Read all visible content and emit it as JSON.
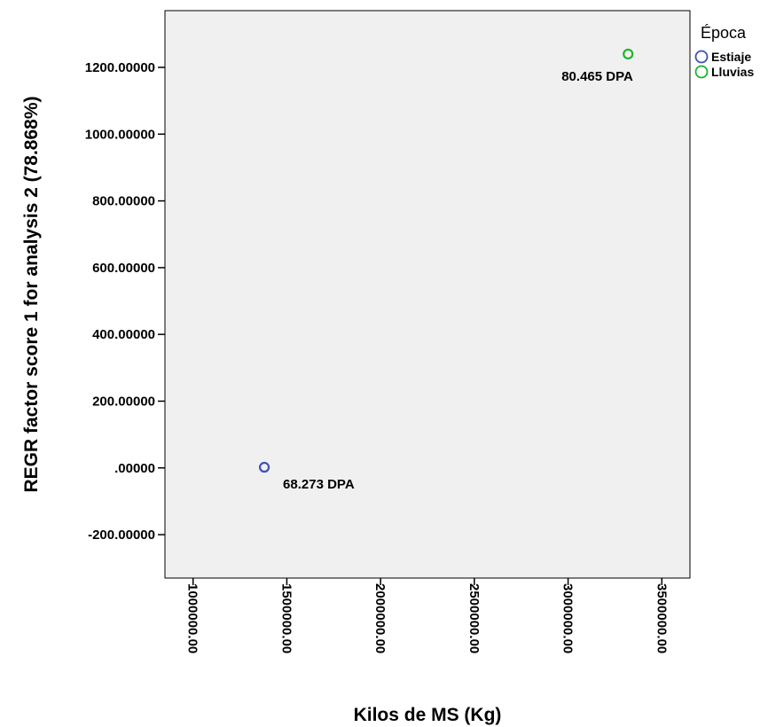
{
  "chart_data": {
    "type": "scatter",
    "title": "",
    "xlabel": "Kilos de MS (Kg)",
    "ylabel": "REGR factor score   1 for analysis 2 (78.868%)",
    "xlim": [
      850000,
      3650000
    ],
    "ylim": [
      -330,
      1370
    ],
    "x_ticks": [
      1000000,
      1500000,
      2000000,
      2500000,
      3000000,
      3500000
    ],
    "x_tick_labels": [
      "1000000.00",
      "1500000.00",
      "2000000.00",
      "2500000.00",
      "3000000.00",
      "3500000.00"
    ],
    "y_ticks": [
      -200,
      0,
      200,
      400,
      600,
      800,
      1000,
      1200
    ],
    "y_tick_labels": [
      "-200.00000",
      ".00000",
      "200.00000",
      "400.00000",
      "600.00000",
      "800.00000",
      "1000.00000",
      "1200.00000"
    ],
    "grid": false,
    "legend": {
      "title": "Época",
      "position": "top-right"
    },
    "series": [
      {
        "name": "Estiaje",
        "color": "#3f51b5",
        "points": [
          {
            "x": 1380000,
            "y": 2,
            "label": "68.273 DPA"
          }
        ]
      },
      {
        "name": "Lluvias",
        "color": "#1db52a",
        "points": [
          {
            "x": 3320000,
            "y": 1240,
            "label": "80.465 DPA"
          }
        ]
      }
    ]
  }
}
